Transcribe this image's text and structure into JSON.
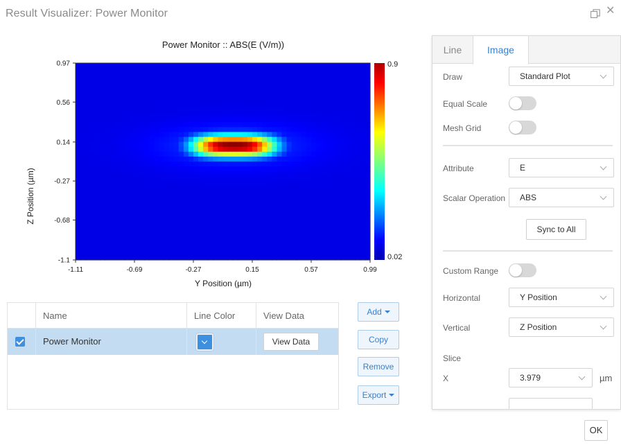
{
  "window": {
    "title": "Result Visualizer: Power Monitor",
    "restore_icon": "restore-window-icon",
    "close_glyph": "✕"
  },
  "chart_data": {
    "type": "heatmap",
    "title": "Power Monitor :: ABS(E (V/m))",
    "xlabel": "Y Position (µm)",
    "ylabel": "Z Position (µm)",
    "xlim": [
      -1.11,
      0.99
    ],
    "ylim": [
      -1.1,
      0.97
    ],
    "xticks": [
      "-1.11",
      "-0.69",
      "-0.27",
      "0.15",
      "0.57",
      "0.99"
    ],
    "yticks": [
      "0.97",
      "0.56",
      "0.14",
      "-0.27",
      "-0.68",
      "-1.1"
    ],
    "colorbar": {
      "min": 0.02,
      "max": 0.9,
      "min_label": "0.02",
      "max_label": "0.9",
      "colormap": "jet"
    },
    "field": {
      "peak_value": 0.9,
      "background_value": 0.02,
      "center_y_um": 0.02,
      "center_z_um": 0.1,
      "description_units": "µm"
    }
  },
  "table": {
    "headers": [
      "",
      "Name",
      "Line Color",
      "View Data"
    ],
    "rows": [
      {
        "checked": true,
        "name": "Power Monitor",
        "line_color": "#3d8fe0",
        "view_data_label": "View Data"
      }
    ]
  },
  "actions": {
    "add": "Add",
    "copy": "Copy",
    "remove": "Remove",
    "export": "Export"
  },
  "panel": {
    "tabs": [
      "Line",
      "Image"
    ],
    "active_tab": "Image",
    "draw_label": "Draw",
    "draw_value": "Standard Plot",
    "equal_scale_label": "Equal Scale",
    "mesh_grid_label": "Mesh Grid",
    "attribute_label": "Attribute",
    "attribute_value": "E",
    "scalar_op_label": "Scalar Operation",
    "scalar_op_value": "ABS",
    "sync_label": "Sync to All",
    "custom_range_label": "Custom Range",
    "horizontal_label": "Horizontal",
    "horizontal_value": "Y Position",
    "vertical_label": "Vertical",
    "vertical_value": "Z Position",
    "slice_label": "Slice",
    "x_label": "X",
    "x_value": "3.979",
    "x_unit": "µm"
  },
  "footer": {
    "ok": "OK"
  }
}
